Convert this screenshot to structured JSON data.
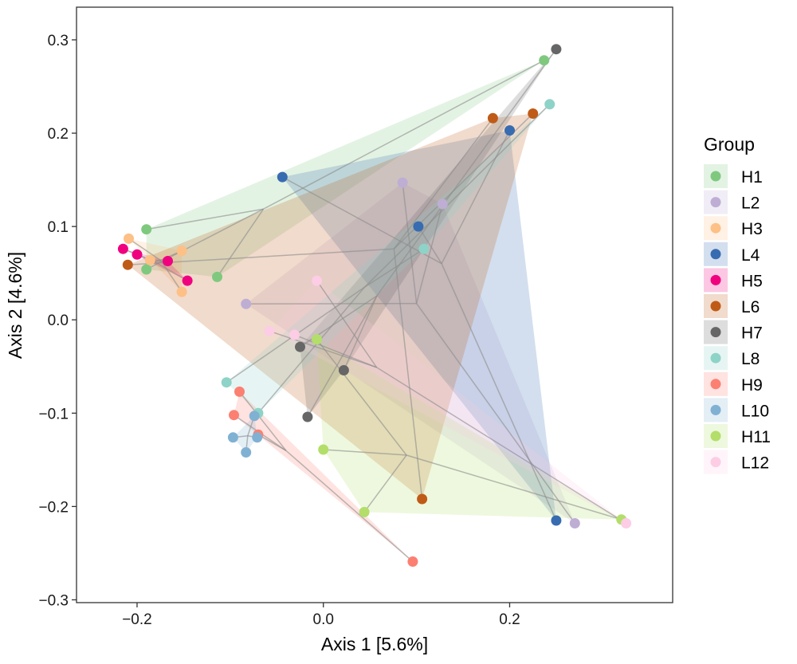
{
  "chart_data": {
    "type": "scatter",
    "xlabel": "Axis 1 [5.6%]",
    "ylabel": "Axis 2 [4.6%]",
    "xlim": [
      -0.265,
      0.375
    ],
    "ylim": [
      -0.303,
      0.335
    ],
    "x_ticks": [
      -0.2,
      0.0,
      0.2
    ],
    "x_tick_labels": [
      "−0.2",
      "0.0",
      "0.2"
    ],
    "y_ticks": [
      -0.3,
      -0.2,
      -0.1,
      0.0,
      0.1,
      0.2,
      0.3
    ],
    "y_tick_labels": [
      "−0.3",
      "−0.2",
      "−0.1",
      "0.0",
      "0.1",
      "0.2",
      "0.3"
    ],
    "grid": false,
    "legend": {
      "title": "Group",
      "position": "right"
    },
    "series": [
      {
        "name": "H1",
        "color": "#7fc97f",
        "points": [
          [
            -0.19,
            0.097
          ],
          [
            -0.19,
            0.054
          ],
          [
            -0.114,
            0.046
          ],
          [
            0.237,
            0.278
          ]
        ]
      },
      {
        "name": "L2",
        "color": "#beaed4",
        "points": [
          [
            -0.083,
            0.017
          ],
          [
            0.085,
            0.147
          ],
          [
            0.128,
            0.124
          ],
          [
            0.27,
            -0.218
          ]
        ]
      },
      {
        "name": "H3",
        "color": "#fdc086",
        "points": [
          [
            -0.209,
            0.087
          ],
          [
            -0.186,
            0.064
          ],
          [
            -0.152,
            0.074
          ],
          [
            -0.152,
            0.03
          ]
        ]
      },
      {
        "name": "L4",
        "color": "#386cb0",
        "points": [
          [
            -0.044,
            0.153
          ],
          [
            0.102,
            0.1
          ],
          [
            0.2,
            0.203
          ],
          [
            0.25,
            -0.215
          ]
        ]
      },
      {
        "name": "H5",
        "color": "#f0027f",
        "points": [
          [
            -0.215,
            0.076
          ],
          [
            -0.2,
            0.07
          ],
          [
            -0.167,
            0.063
          ],
          [
            -0.146,
            0.042
          ]
        ]
      },
      {
        "name": "L6",
        "color": "#bf5b17",
        "points": [
          [
            -0.21,
            0.059
          ],
          [
            0.182,
            0.216
          ],
          [
            0.225,
            0.221
          ],
          [
            0.106,
            -0.192
          ]
        ]
      },
      {
        "name": "H7",
        "color": "#666666",
        "points": [
          [
            0.25,
            0.29
          ],
          [
            -0.025,
            -0.029
          ],
          [
            0.022,
            -0.054
          ],
          [
            -0.017,
            -0.104
          ]
        ]
      },
      {
        "name": "L8",
        "color": "#8ed3c7",
        "points": [
          [
            0.243,
            0.231
          ],
          [
            0.108,
            0.076
          ],
          [
            -0.104,
            -0.067
          ],
          [
            -0.07,
            -0.1
          ]
        ]
      },
      {
        "name": "H9",
        "color": "#fb8072",
        "points": [
          [
            -0.09,
            -0.077
          ],
          [
            -0.096,
            -0.102
          ],
          [
            -0.07,
            -0.123
          ],
          [
            0.096,
            -0.259
          ]
        ]
      },
      {
        "name": "L10",
        "color": "#80b1d3",
        "points": [
          [
            -0.074,
            -0.103
          ],
          [
            -0.097,
            -0.126
          ],
          [
            -0.071,
            -0.126
          ],
          [
            -0.083,
            -0.142
          ]
        ]
      },
      {
        "name": "H11",
        "color": "#b3de69",
        "points": [
          [
            -0.007,
            -0.021
          ],
          [
            0.0,
            -0.139
          ],
          [
            0.044,
            -0.206
          ],
          [
            0.32,
            -0.214
          ]
        ]
      },
      {
        "name": "L12",
        "color": "#fccde5",
        "points": [
          [
            -0.007,
            0.042
          ],
          [
            -0.058,
            -0.012
          ],
          [
            -0.031,
            -0.016
          ],
          [
            0.325,
            -0.218
          ]
        ]
      }
    ]
  }
}
